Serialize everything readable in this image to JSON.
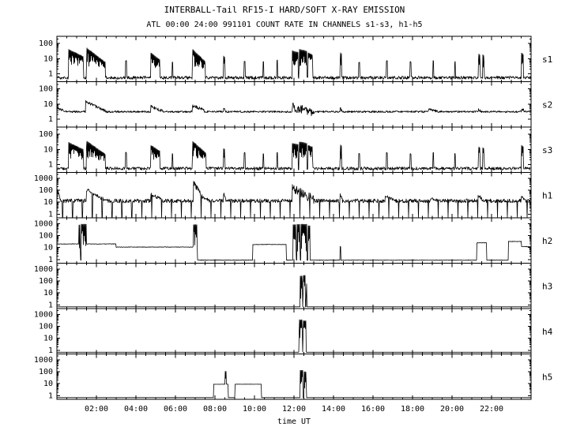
{
  "chart_data": {
    "type": "line",
    "title": "INTERBALL-Tail RF15-I HARD/SOFT X-RAY EMISSION",
    "subtitle": "ATL 00:00 24:00 991101  COUNT RATE IN CHANNELS s1-s3, h1-h5",
    "xlabel": "time UT",
    "x_range_hours": [
      0,
      24
    ],
    "x_tick_hours": [
      2,
      4,
      6,
      8,
      10,
      12,
      14,
      16,
      18,
      20,
      22
    ],
    "x_tick_labels": [
      "02:00",
      "04:00",
      "06:00",
      "08:00",
      "10:00",
      "12:00",
      "14:00",
      "16:00",
      "18:00",
      "20:00",
      "22:00"
    ],
    "y_scale": "log",
    "grid": false,
    "line_color": "#000000",
    "background_color": "#ffffff",
    "panels": [
      {
        "channel": "s1",
        "ylim": [
          0.3,
          300
        ],
        "yticks": [
          100,
          10,
          1
        ],
        "base": {
          "level": 0.55,
          "amp": 0.1
        },
        "spikes": [
          [
            3.5,
            7
          ],
          [
            5.85,
            6
          ],
          [
            9.5,
            7
          ],
          [
            10.45,
            6
          ],
          [
            11.15,
            8
          ],
          [
            15.3,
            6
          ],
          [
            16.7,
            7
          ],
          [
            17.9,
            6
          ],
          [
            19.05,
            7
          ],
          [
            20.15,
            6
          ]
        ],
        "segments": [
          {
            "t0": 0.6,
            "t1": 1.35,
            "type": "fill",
            "peak": 42,
            "end": 14,
            "base": 1.6
          },
          {
            "t0": 1.5,
            "t1": 2.45,
            "type": "fill",
            "peak": 55,
            "end": 6,
            "base": 1.6
          },
          {
            "t0": 4.75,
            "t1": 5.2,
            "type": "fill",
            "peak": 26,
            "end": 9,
            "base": 1.5
          },
          {
            "t0": 6.85,
            "t1": 7.5,
            "type": "fill",
            "peak": 45,
            "end": 7,
            "base": 1.5
          },
          {
            "t0": 8.42,
            "t1": 8.5,
            "type": "fill",
            "peak": 16,
            "end": 13,
            "base": 1
          },
          {
            "t0": 11.9,
            "t1": 12.2,
            "type": "fill",
            "peak": 34,
            "end": 28,
            "base": 1.5
          },
          {
            "t0": 12.25,
            "t1": 12.65,
            "type": "fill",
            "peak": 45,
            "end": 32,
            "base": 1.5
          },
          {
            "t0": 12.7,
            "t1": 12.95,
            "type": "fill",
            "peak": 26,
            "end": 18,
            "base": 1.5
          },
          {
            "t0": 14.33,
            "t1": 14.4,
            "type": "fill",
            "peak": 28,
            "end": 22,
            "base": 1
          },
          {
            "t0": 21.33,
            "t1": 21.42,
            "type": "fill",
            "peak": 22,
            "end": 18,
            "base": 1
          },
          {
            "t0": 21.55,
            "t1": 21.63,
            "type": "fill",
            "peak": 20,
            "end": 16,
            "base": 1
          },
          {
            "t0": 23.5,
            "t1": 23.6,
            "type": "fill",
            "peak": 26,
            "end": 20,
            "base": 1
          }
        ]
      },
      {
        "channel": "s2",
        "ylim": [
          0.3,
          300
        ],
        "yticks": [
          100,
          10,
          1
        ],
        "base": {
          "level": 3.1,
          "amp": 0.06
        },
        "spikes": [],
        "segments": [
          {
            "t0": 0,
            "t1": 0.5,
            "type": "line",
            "peak": 5.5,
            "end": 3.2,
            "amp": 0.08
          },
          {
            "t0": 1.45,
            "t1": 2.55,
            "type": "line",
            "peak": 14,
            "end": 3.2,
            "amp": 0.1
          },
          {
            "t0": 4.75,
            "t1": 5.35,
            "type": "line",
            "peak": 7,
            "end": 3.4,
            "amp": 0.1
          },
          {
            "t0": 6.85,
            "t1": 7.55,
            "type": "line",
            "peak": 7.5,
            "end": 3.4,
            "amp": 0.12
          },
          {
            "t0": 8.42,
            "t1": 8.52,
            "type": "line",
            "peak": 5,
            "end": 4,
            "amp": 0.08
          },
          {
            "t0": 11.9,
            "t1": 13.05,
            "type": "line",
            "peak": 6,
            "end": 3,
            "amp": 0.32
          },
          {
            "t0": 14.33,
            "t1": 14.42,
            "type": "line",
            "peak": 5,
            "end": 4,
            "amp": 0.1
          },
          {
            "t0": 18.8,
            "t1": 19.3,
            "type": "line",
            "peak": 4.5,
            "end": 3.2,
            "amp": 0.08
          },
          {
            "t0": 21.33,
            "t1": 21.45,
            "type": "line",
            "peak": 4.6,
            "end": 3.5,
            "amp": 0.08
          },
          {
            "t0": 23.5,
            "t1": 23.62,
            "type": "line",
            "peak": 5,
            "end": 4,
            "amp": 0.08
          }
        ]
      },
      {
        "channel": "s3",
        "ylim": [
          0.3,
          300
        ],
        "yticks": [
          100,
          10,
          1
        ],
        "base": {
          "level": 0.55,
          "amp": 0.1
        },
        "spikes": [
          [
            3.5,
            6
          ],
          [
            5.85,
            5
          ],
          [
            9.5,
            6
          ],
          [
            10.45,
            5
          ],
          [
            11.15,
            6
          ],
          [
            15.3,
            5
          ],
          [
            16.7,
            6
          ],
          [
            17.9,
            5
          ],
          [
            19.05,
            6
          ],
          [
            20.15,
            5
          ]
        ],
        "segments": [
          {
            "t0": 0.6,
            "t1": 1.35,
            "type": "fill",
            "peak": 30,
            "end": 10,
            "base": 1.3
          },
          {
            "t0": 1.5,
            "t1": 2.45,
            "type": "fill",
            "peak": 38,
            "end": 5,
            "base": 1.3
          },
          {
            "t0": 4.75,
            "t1": 5.2,
            "type": "fill",
            "peak": 20,
            "end": 8,
            "base": 1.3
          },
          {
            "t0": 6.85,
            "t1": 7.55,
            "type": "fill",
            "peak": 38,
            "end": 6,
            "base": 1.3
          },
          {
            "t0": 8.42,
            "t1": 8.5,
            "type": "fill",
            "peak": 12,
            "end": 10,
            "base": 1
          },
          {
            "t0": 11.9,
            "t1": 12.2,
            "type": "fill",
            "peak": 26,
            "end": 22,
            "base": 1.3
          },
          {
            "t0": 12.25,
            "t1": 12.65,
            "type": "fill",
            "peak": 34,
            "end": 26,
            "base": 1.3
          },
          {
            "t0": 12.7,
            "t1": 12.95,
            "type": "fill",
            "peak": 20,
            "end": 15,
            "base": 1.3
          },
          {
            "t0": 14.33,
            "t1": 14.4,
            "type": "fill",
            "peak": 22,
            "end": 18,
            "base": 1
          },
          {
            "t0": 21.33,
            "t1": 21.42,
            "type": "fill",
            "peak": 16,
            "end": 13,
            "base": 1
          },
          {
            "t0": 21.55,
            "t1": 21.63,
            "type": "fill",
            "peak": 14,
            "end": 12,
            "base": 1
          },
          {
            "t0": 23.5,
            "t1": 23.6,
            "type": "fill",
            "peak": 20,
            "end": 16,
            "base": 1
          }
        ]
      },
      {
        "channel": "h1",
        "ylim": [
          0.5,
          3000
        ],
        "yticks": [
          1000,
          100,
          10,
          1
        ],
        "base": {
          "level": 13,
          "amp": 0.16
        },
        "dropouts": {
          "period": 0.5,
          "offset": 0.22,
          "width": 0.035
        },
        "spikes": [],
        "segments": [
          {
            "t0": 0.02,
            "t1": 0.15,
            "type": "line",
            "peak": 120,
            "end": 30,
            "amp": 0.1
          },
          {
            "t0": 1.5,
            "t1": 2.35,
            "type": "line",
            "peak": 110,
            "end": 18,
            "amp": 0.14
          },
          {
            "t0": 4.75,
            "t1": 5.35,
            "type": "line",
            "peak": 45,
            "end": 15,
            "amp": 0.14
          },
          {
            "t0": 6.9,
            "t1": 7.35,
            "type": "line",
            "peak": 480,
            "end": 28,
            "amp": 0.25
          },
          {
            "t0": 7.35,
            "t1": 7.7,
            "type": "line",
            "peak": 26,
            "end": 15,
            "amp": 0.12
          },
          {
            "t0": 8.42,
            "t1": 8.52,
            "type": "line",
            "peak": 70,
            "end": 25,
            "amp": 0.1
          },
          {
            "t0": 11.9,
            "t1": 13.05,
            "type": "line",
            "peak": 140,
            "end": 16,
            "amp": 0.38
          },
          {
            "t0": 14.33,
            "t1": 14.45,
            "type": "line",
            "peak": 45,
            "end": 20,
            "amp": 0.12
          },
          {
            "t0": 16.6,
            "t1": 17.15,
            "type": "line",
            "peak": 32,
            "end": 14,
            "amp": 0.12
          },
          {
            "t0": 18.9,
            "t1": 19.25,
            "type": "line",
            "peak": 22,
            "end": 14,
            "amp": 0.1
          },
          {
            "t0": 21.3,
            "t1": 21.55,
            "type": "line",
            "peak": 42,
            "end": 15,
            "amp": 0.15
          },
          {
            "t0": 23.5,
            "t1": 23.65,
            "type": "line",
            "peak": 40,
            "end": 18,
            "amp": 0.12
          }
        ]
      },
      {
        "channel": "h2",
        "ylim": [
          0.5,
          3000
        ],
        "yticks": [
          1000,
          100,
          10,
          1
        ],
        "base": {
          "level": 0.9,
          "amp": 0.02
        },
        "spikes": [],
        "segments": [
          {
            "t0": 0,
            "t1": 1.12,
            "type": "line",
            "peak": 20,
            "end": 20,
            "amp": 0.02
          },
          {
            "t0": 1.12,
            "t1": 1.2,
            "type": "fill",
            "peak": 800,
            "base": 1.5
          },
          {
            "t0": 1.24,
            "t1": 1.5,
            "type": "fill",
            "peak": 900,
            "base": 1.5
          },
          {
            "t0": 1.5,
            "t1": 3.0,
            "type": "line",
            "peak": 20,
            "end": 20,
            "amp": 0.02
          },
          {
            "t0": 3.0,
            "t1": 6.88,
            "type": "line",
            "peak": 11,
            "end": 11,
            "amp": 0.02
          },
          {
            "t0": 6.88,
            "t1": 7.1,
            "type": "fill",
            "peak": 850,
            "base": 1.5
          },
          {
            "t0": 9.9,
            "t1": 11.6,
            "type": "line",
            "peak": 18,
            "end": 18,
            "amp": 0.02
          },
          {
            "t0": 11.95,
            "t1": 12.1,
            "type": "fill",
            "peak": 850,
            "base": 1.2
          },
          {
            "t0": 12.15,
            "t1": 12.3,
            "type": "fill",
            "peak": 900,
            "base": 1.2
          },
          {
            "t0": 12.35,
            "t1": 12.65,
            "type": "fill",
            "peak": 900,
            "base": 1.2
          },
          {
            "t0": 12.7,
            "t1": 12.8,
            "type": "fill",
            "peak": 700,
            "base": 1.2
          },
          {
            "t0": 14.33,
            "t1": 14.37,
            "type": "line",
            "peak": 12,
            "end": 12,
            "amp": 0.02
          },
          {
            "t0": 21.25,
            "t1": 21.75,
            "type": "line",
            "peak": 25,
            "end": 25,
            "amp": 0.02
          },
          {
            "t0": 22.85,
            "t1": 23.5,
            "type": "line",
            "peak": 32,
            "end": 32,
            "amp": 0.02
          },
          {
            "t0": 23.5,
            "t1": 24,
            "type": "line",
            "peak": 12,
            "end": 12,
            "amp": 0.02
          }
        ]
      },
      {
        "channel": "h3",
        "ylim": [
          0.5,
          3000
        ],
        "yticks": [
          1000,
          100,
          10,
          1
        ],
        "base": {
          "level": 0.7,
          "amp": 0
        },
        "spikes": [],
        "segments": [
          {
            "t0": 12.3,
            "t1": 12.42,
            "type": "fill",
            "peak": 260,
            "base": 1
          },
          {
            "t0": 12.44,
            "t1": 12.56,
            "type": "fill",
            "peak": 300,
            "base": 1
          },
          {
            "t0": 12.6,
            "t1": 12.64,
            "type": "fill",
            "peak": 60,
            "base": 1
          }
        ]
      },
      {
        "channel": "h4",
        "ylim": [
          0.5,
          3000
        ],
        "yticks": [
          1000,
          100,
          10,
          1
        ],
        "base": {
          "level": 0.7,
          "amp": 0
        },
        "spikes": [],
        "segments": [
          {
            "t0": 12.25,
            "t1": 12.42,
            "type": "fill",
            "peak": 360,
            "base": 1
          },
          {
            "t0": 12.44,
            "t1": 12.6,
            "type": "fill",
            "peak": 300,
            "base": 1
          }
        ]
      },
      {
        "channel": "h5",
        "ylim": [
          0.5,
          3000
        ],
        "yticks": [
          1000,
          100,
          10,
          1
        ],
        "base": {
          "level": 0.7,
          "amp": 0
        },
        "spikes": [],
        "segments": [
          {
            "t0": 7.92,
            "t1": 8.67,
            "type": "line",
            "peak": 9,
            "end": 9,
            "amp": 0.01
          },
          {
            "t0": 8.5,
            "t1": 8.56,
            "type": "fill",
            "peak": 110,
            "base": 9
          },
          {
            "t0": 9.0,
            "t1": 10.35,
            "type": "line",
            "peak": 9,
            "end": 9,
            "amp": 0.01
          },
          {
            "t0": 12.3,
            "t1": 12.45,
            "type": "fill",
            "peak": 130,
            "base": 1
          },
          {
            "t0": 12.5,
            "t1": 12.62,
            "type": "fill",
            "peak": 100,
            "base": 1
          }
        ]
      }
    ]
  }
}
